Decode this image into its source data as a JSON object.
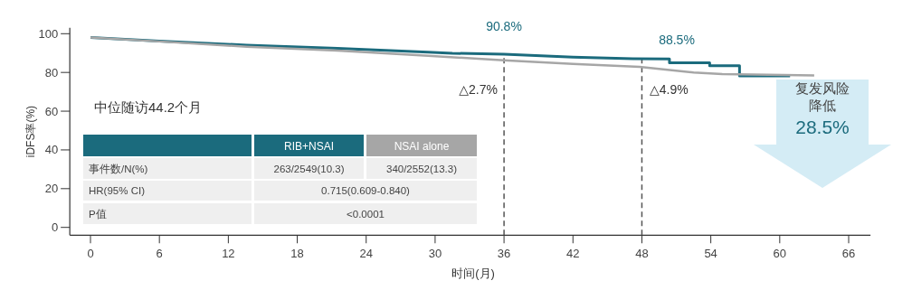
{
  "chart_data": {
    "type": "line",
    "xlabel": "时间(月)",
    "ylabel": "iDFS率(%)",
    "xlim": [
      -1.8,
      67.9
    ],
    "ylim": [
      -4,
      103
    ],
    "xticks": [
      0,
      6,
      12,
      18,
      24,
      30,
      36,
      42,
      48,
      54,
      60,
      66
    ],
    "yticks": [
      0,
      20,
      40,
      60,
      80,
      100
    ],
    "grid": false,
    "legend": "bottom left",
    "marker": "none",
    "line_style": "solid",
    "series": [
      {
        "name": "RIB+NSAI",
        "color": "#1b6b7d",
        "x": [
          0,
          6,
          13.6,
          21.5,
          29.4,
          31.5,
          36,
          42,
          47.2,
          50.4,
          50.4,
          53.9,
          53.9,
          56.5,
          56.5,
          60.9
        ],
        "values": [
          98,
          96.2,
          94.1,
          92.4,
          90.5,
          89.9,
          89.4,
          87.9,
          87.1,
          87.0,
          85.0,
          85.0,
          83.5,
          83.5,
          78.2,
          78.2
        ]
      },
      {
        "name": "NSAI alone",
        "color": "#a6a6a6",
        "x": [
          0,
          6,
          13.6,
          21.5,
          29.4,
          36,
          42,
          47.8,
          52.5,
          55,
          63
        ],
        "values": [
          98,
          96.0,
          93.3,
          91.3,
          88.6,
          86.3,
          84.4,
          82.9,
          80.0,
          79.1,
          78.5
        ]
      }
    ],
    "ref_lines": [
      {
        "axis": "x",
        "value": 36,
        "line_style": "dashed",
        "color": "#555555"
      },
      {
        "axis": "x",
        "value": 48,
        "line_style": "dashed",
        "color": "#555555"
      }
    ],
    "annotations": [
      "中位随访44.2个月",
      "90.8%",
      "88.5%",
      "△2.7%",
      "△4.9%",
      "事件数/N(%)",
      "263/2549(10.3)",
      "340/2552(13.3)",
      "HR(95% CI)",
      "0.715(0.609-0.840)",
      "P值",
      "<0.0001",
      "复发风险",
      "降低",
      "28.5%"
    ]
  }
}
